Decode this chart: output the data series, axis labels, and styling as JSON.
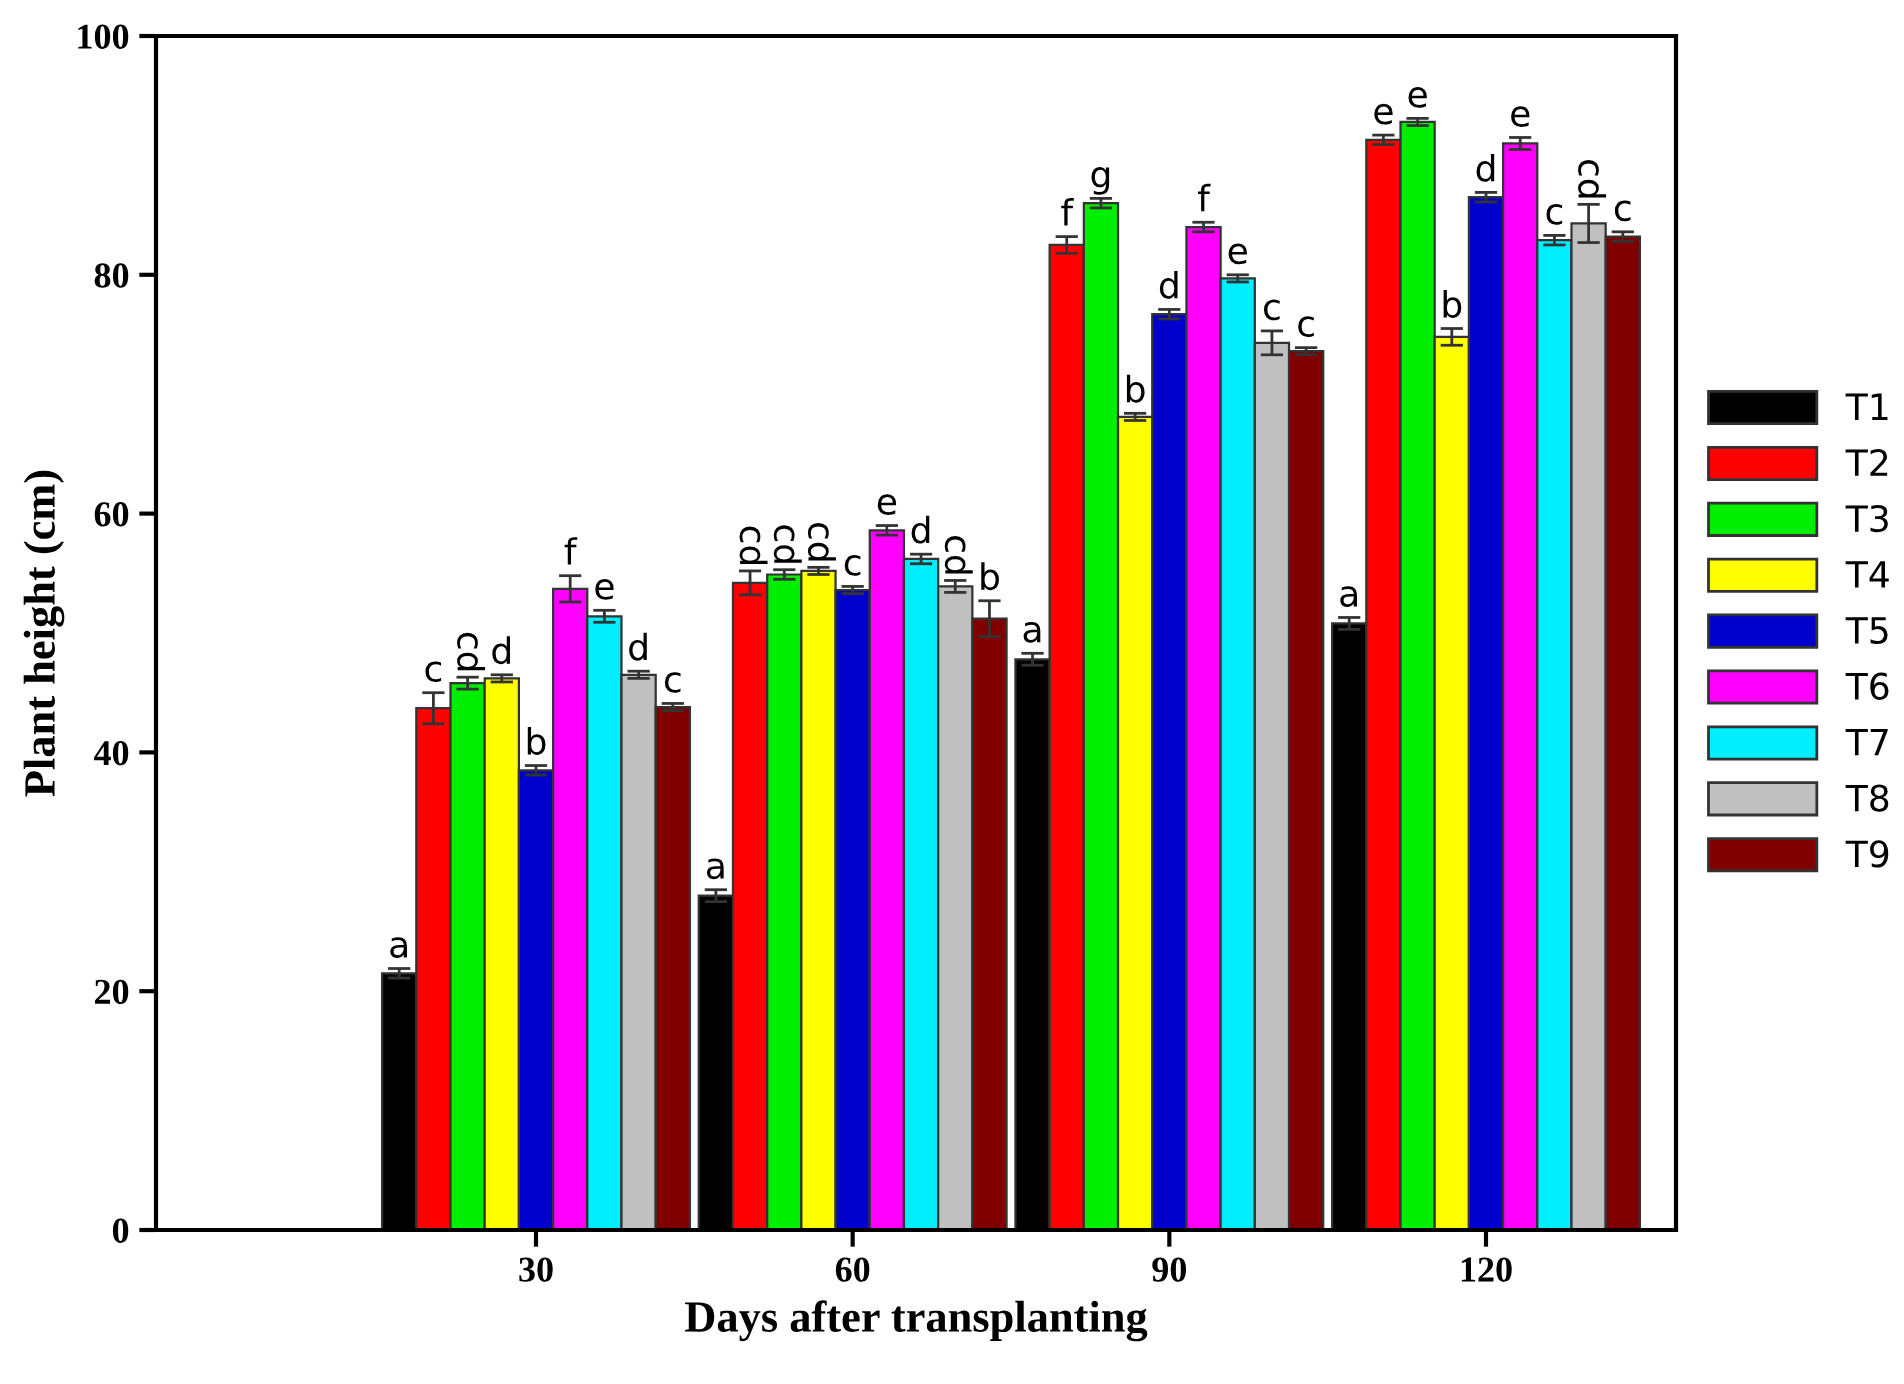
{
  "chart_data": {
    "type": "bar",
    "xlabel": "Days after transplanting",
    "ylabel": "Plant height (cm)",
    "categories": [
      "30",
      "60",
      "90",
      "120"
    ],
    "ylim": [
      0,
      100
    ],
    "yticks": [
      0,
      20,
      40,
      60,
      80,
      100
    ],
    "grid": false,
    "legend": "right",
    "series": [
      {
        "name": "T1",
        "color": "#000000",
        "values": [
          21.5,
          28.0,
          47.8,
          50.8
        ],
        "errors": [
          0.4,
          0.5,
          0.5,
          0.5
        ],
        "value_labels": [
          "a",
          "a",
          "a",
          "a"
        ]
      },
      {
        "name": "T2",
        "color": "#ff0000",
        "values": [
          43.7,
          54.2,
          82.5,
          91.3
        ],
        "errors": [
          1.3,
          1.0,
          0.7,
          0.4
        ],
        "value_labels": [
          "c",
          "cd",
          "f",
          "e"
        ]
      },
      {
        "name": "T3",
        "color": "#00ee00",
        "values": [
          45.8,
          54.9,
          86.0,
          92.8
        ],
        "errors": [
          0.5,
          0.4,
          0.4,
          0.3
        ],
        "value_labels": [
          "cd",
          "cd",
          "g",
          "e"
        ]
      },
      {
        "name": "T4",
        "color": "#ffff00",
        "values": [
          46.2,
          55.2,
          68.1,
          74.8
        ],
        "errors": [
          0.3,
          0.3,
          0.3,
          0.7
        ],
        "value_labels": [
          "d",
          "cd",
          "b",
          "b"
        ]
      },
      {
        "name": "T5",
        "color": "#0000cc",
        "values": [
          38.5,
          53.6,
          76.7,
          86.5
        ],
        "errors": [
          0.4,
          0.3,
          0.4,
          0.4
        ],
        "value_labels": [
          "b",
          "c",
          "d",
          "d"
        ]
      },
      {
        "name": "T6",
        "color": "#ff00ff",
        "values": [
          53.7,
          58.6,
          84.0,
          91.0
        ],
        "errors": [
          1.1,
          0.4,
          0.4,
          0.5
        ],
        "value_labels": [
          "f",
          "e",
          "f",
          "e"
        ]
      },
      {
        "name": "T7",
        "color": "#00eeff",
        "values": [
          51.4,
          56.2,
          79.7,
          82.9
        ],
        "errors": [
          0.5,
          0.4,
          0.3,
          0.4
        ],
        "value_labels": [
          "e",
          "d",
          "e",
          "c"
        ]
      },
      {
        "name": "T8",
        "color": "#c0c0c0",
        "values": [
          46.5,
          53.9,
          74.3,
          84.3
        ],
        "errors": [
          0.3,
          0.5,
          1.0,
          1.6
        ],
        "value_labels": [
          "d",
          "cd",
          "c",
          "cd"
        ]
      },
      {
        "name": "T9",
        "color": "#800000",
        "values": [
          43.8,
          51.2,
          73.6,
          83.2
        ],
        "errors": [
          0.3,
          1.5,
          0.3,
          0.4
        ],
        "value_labels": [
          "c",
          "b",
          "c",
          "c"
        ]
      }
    ]
  }
}
